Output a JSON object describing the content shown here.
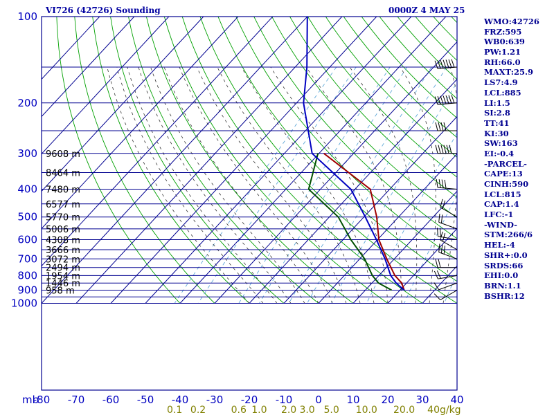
{
  "header": {
    "title_left": "VI726 (42726) Sounding",
    "title_right": "0000Z  4 MAY 25"
  },
  "indices": [
    "WMO:42726",
    "FRZ:595",
    "WB0:639",
    "PW:1.21",
    "RH:66.0",
    "MAXT:25.9",
    "LS7:4.9",
    "LCL:885",
    "LI:1.5",
    "SI:2.8",
    "TT:41",
    "KI:30",
    "SW:163",
    "EI:-0.4",
    "-PARCEL-",
    "CAPE:13",
    "CINH:590",
    "LCL:815",
    "CAP:1.4",
    "LFC:-1",
    "-WIND-",
    "STM:266/6",
    "HEL:-4",
    "SHR+:0.0",
    "SRDS:66",
    "EHI:0.0",
    "BRN:1.1",
    "BSHR:12"
  ],
  "colors": {
    "frame": "#000090",
    "dry_adiabats": "#00a000",
    "mixing_ratio": "#5fa8d8",
    "moist_adiabats": "#333333",
    "temperature": "#a00000",
    "dewpoint": "#005000",
    "parcel": "#0000c0",
    "axis_text": "#0000c0",
    "mixing_text": "#808000"
  },
  "chart_data": {
    "type": "skew-T log-P",
    "pressure_ticks": [
      100,
      200,
      300,
      400,
      500,
      600,
      700,
      800,
      900,
      1000
    ],
    "x_ticks": [
      -80,
      -70,
      -60,
      -50,
      -40,
      -30,
      -20,
      -10,
      0,
      10,
      20,
      30,
      40
    ],
    "x_unit_label": "mb",
    "mixing_ratio_labels": [
      "0.1",
      "0.2",
      "0.6",
      "1.0",
      "2.0",
      "3.0",
      "5.0",
      "10.0",
      "20.0",
      "40g/kg"
    ],
    "height_labels": [
      {
        "p": 300,
        "text": "9608 m"
      },
      {
        "p": 350,
        "text": "8464 m"
      },
      {
        "p": 400,
        "text": "7480 m"
      },
      {
        "p": 450,
        "text": "6577 m"
      },
      {
        "p": 500,
        "text": "5770 m"
      },
      {
        "p": 550,
        "text": "5006 m"
      },
      {
        "p": 600,
        "text": "4308 m"
      },
      {
        "p": 650,
        "text": "3666 m"
      },
      {
        "p": 700,
        "text": "3072 m"
      },
      {
        "p": 750,
        "text": "2494 m"
      },
      {
        "p": 800,
        "text": "1954 m"
      },
      {
        "p": 850,
        "text": "1446 m"
      },
      {
        "p": 900,
        "text": "958 m"
      }
    ],
    "temperature": {
      "name": "Temperature",
      "points": [
        [
          300,
          -38.6
        ],
        [
          400,
          -15.6
        ],
        [
          500,
          -6.3
        ],
        [
          600,
          0.4
        ],
        [
          700,
          7.8
        ],
        [
          800,
          14.6
        ],
        [
          850,
          18.6
        ],
        [
          900,
          21.2
        ]
      ]
    },
    "dewpoint": {
      "name": "Dewpoint",
      "points": [
        [
          300,
          -40.3
        ],
        [
          400,
          -33.4
        ],
        [
          500,
          -17.4
        ],
        [
          600,
          -7.7
        ],
        [
          700,
          1.4
        ],
        [
          800,
          8.1
        ],
        [
          850,
          11.9
        ],
        [
          900,
          17.6
        ]
      ]
    },
    "parcel": {
      "name": "Parcel",
      "points": [
        [
          100,
          -80
        ],
        [
          150,
          -66.6
        ],
        [
          200,
          -58
        ],
        [
          300,
          -42
        ],
        [
          400,
          -21.2
        ],
        [
          500,
          -9.6
        ],
        [
          600,
          -0.3
        ],
        [
          700,
          7.3
        ],
        [
          800,
          13.4
        ],
        [
          850,
          17
        ],
        [
          900,
          21.2
        ]
      ]
    },
    "wind_barbs": [
      {
        "p": 150,
        "dir": 265,
        "spd": 75
      },
      {
        "p": 200,
        "dir": 265,
        "spd": 70
      },
      {
        "p": 250,
        "dir": 270,
        "spd": 40
      },
      {
        "p": 300,
        "dir": 270,
        "spd": 65
      },
      {
        "p": 400,
        "dir": 275,
        "spd": 45
      },
      {
        "p": 500,
        "dir": 300,
        "spd": 20
      },
      {
        "p": 550,
        "dir": 290,
        "spd": 20
      },
      {
        "p": 600,
        "dir": 280,
        "spd": 20
      },
      {
        "p": 650,
        "dir": 300,
        "spd": 25
      },
      {
        "p": 700,
        "dir": 290,
        "spd": 30
      },
      {
        "p": 750,
        "dir": 270,
        "spd": 25
      },
      {
        "p": 800,
        "dir": 260,
        "spd": 25
      },
      {
        "p": 850,
        "dir": 250,
        "spd": 10
      },
      {
        "p": 900,
        "dir": 240,
        "spd": 15
      }
    ]
  }
}
